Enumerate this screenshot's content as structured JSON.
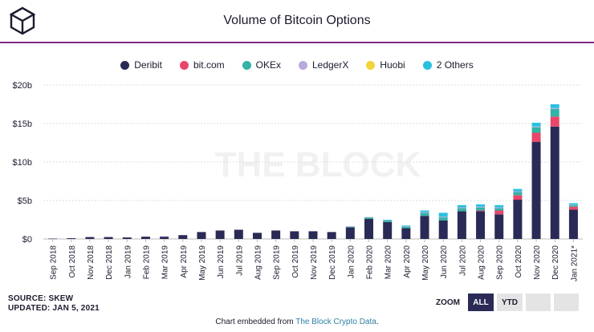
{
  "header": {
    "title": "Volume of Bitcoin Options"
  },
  "watermark": "THE BLOCK",
  "legend": [
    {
      "label": "Deribit",
      "color": "#2a2a56"
    },
    {
      "label": "bit.com",
      "color": "#e8476b"
    },
    {
      "label": "OKEx",
      "color": "#33b3a8"
    },
    {
      "label": "LedgerX",
      "color": "#b9a8db"
    },
    {
      "label": "Huobi",
      "color": "#f2d33b"
    },
    {
      "label": "2 Others",
      "color": "#29c0e0"
    }
  ],
  "chart_data": {
    "type": "bar",
    "stacked": true,
    "categories": [
      "Sep 2018",
      "Oct 2018",
      "Nov 2018",
      "Dec 2018",
      "Jan 2019",
      "Feb 2019",
      "Mar 2019",
      "Apr 2019",
      "May 2019",
      "Jun 2019",
      "Jul 2019",
      "Aug 2019",
      "Sep 2019",
      "Oct 2019",
      "Nov 2019",
      "Dec 2019",
      "Jan 2020",
      "Feb 2020",
      "Mar 2020",
      "Apr 2020",
      "May 2020",
      "Jun 2020",
      "Jul 2020",
      "Aug 2020",
      "Sep 2020",
      "Oct 2020",
      "Nov 2020",
      "Dec 2020",
      "Jan 2021*"
    ],
    "series": [
      {
        "name": "Deribit",
        "color": "#2a2a56",
        "values": [
          0.05,
          0.1,
          0.25,
          0.25,
          0.2,
          0.3,
          0.3,
          0.5,
          0.9,
          1.1,
          1.2,
          0.8,
          1.1,
          1.0,
          1.0,
          0.9,
          1.5,
          2.6,
          2.2,
          1.4,
          3.0,
          2.4,
          3.6,
          3.6,
          3.2,
          5.1,
          12.6,
          14.6,
          3.8
        ]
      },
      {
        "name": "bit.com",
        "color": "#e8476b",
        "values": [
          0,
          0,
          0,
          0,
          0,
          0,
          0,
          0,
          0,
          0,
          0,
          0,
          0,
          0,
          0,
          0,
          0,
          0,
          0,
          0,
          0,
          0,
          0,
          0.1,
          0.5,
          0.6,
          1.2,
          1.3,
          0.4
        ]
      },
      {
        "name": "OKEx",
        "color": "#33b3a8",
        "values": [
          0,
          0,
          0,
          0,
          0,
          0,
          0,
          0,
          0,
          0,
          0,
          0,
          0,
          0,
          0,
          0,
          0.1,
          0.2,
          0.2,
          0.2,
          0.4,
          0.4,
          0.4,
          0.4,
          0.3,
          0.4,
          0.7,
          1.0,
          0.2
        ]
      },
      {
        "name": "LedgerX",
        "color": "#b9a8db",
        "values": [
          0,
          0,
          0,
          0,
          0,
          0,
          0.05,
          0,
          0,
          0,
          0,
          0,
          0,
          0,
          0,
          0,
          0.05,
          0.05,
          0.05,
          0.05,
          0.1,
          0.1,
          0.1,
          0.1,
          0.1,
          0.1,
          0.1,
          0.1,
          0.05
        ]
      },
      {
        "name": "Huobi",
        "color": "#f2d33b",
        "values": [
          0,
          0,
          0,
          0,
          0,
          0,
          0,
          0,
          0,
          0,
          0,
          0,
          0,
          0,
          0,
          0,
          0,
          0,
          0,
          0,
          0,
          0,
          0,
          0,
          0,
          0,
          0,
          0,
          0
        ]
      },
      {
        "name": "2 Others",
        "color": "#29c0e0",
        "values": [
          0,
          0,
          0,
          0,
          0,
          0,
          0,
          0,
          0,
          0,
          0,
          0,
          0,
          0,
          0,
          0,
          0,
          0,
          0.05,
          0.1,
          0.2,
          0.5,
          0.3,
          0.3,
          0.3,
          0.3,
          0.5,
          0.5,
          0.2
        ]
      }
    ],
    "ylim": [
      0,
      20
    ],
    "yticks": [
      0,
      5,
      10,
      15,
      20
    ],
    "ytick_labels": [
      "$0",
      "$5b",
      "$10b",
      "$15b",
      "$20b"
    ],
    "grid": true,
    "legend_position": "top-center"
  },
  "footer": {
    "source": "SOURCE: SKEW",
    "updated": "UPDATED: JAN 5, 2021",
    "embed_prefix": "Chart embedded from ",
    "embed_link": "The Block Crypto Data",
    "embed_suffix": "."
  },
  "zoom": {
    "label": "ZOOM",
    "buttons": [
      {
        "label": "ALL",
        "active": true
      },
      {
        "label": "YTD",
        "active": false
      },
      {
        "label": "",
        "active": false
      },
      {
        "label": "",
        "active": false
      }
    ]
  }
}
